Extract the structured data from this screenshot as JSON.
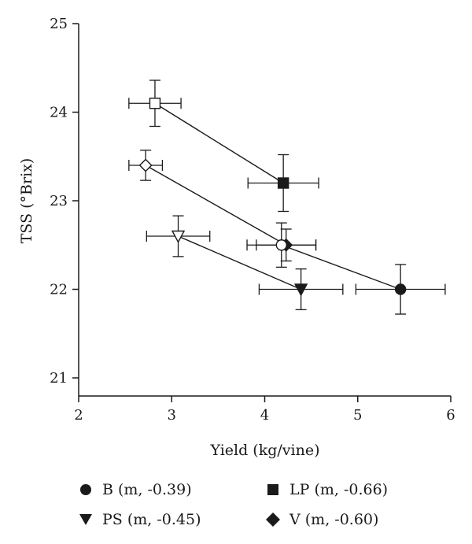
{
  "chart_data": {
    "type": "scatter",
    "title": "",
    "xlabel": "Yield (kg/vine)",
    "ylabel": "TSS (°Brix)",
    "xlim": [
      2,
      6
    ],
    "ylim": [
      21,
      25
    ],
    "xticks": [
      "2",
      "3",
      "4",
      "5",
      "6"
    ],
    "yticks": [
      "21",
      "22",
      "23",
      "24",
      "25"
    ],
    "grid": false,
    "legend_position": "bottom",
    "connections": [
      {
        "from": "LP-open",
        "to": "LP-filled"
      },
      {
        "from": "V-open",
        "to": "V-filled"
      },
      {
        "from": "PS-open",
        "to": "PS-filled"
      },
      {
        "from": "B-open",
        "to": "B-filled"
      }
    ],
    "points": [
      {
        "id": "LP-open",
        "series": "LP",
        "x": 2.82,
        "y": 24.1,
        "xerr": 0.28,
        "yerr": 0.26,
        "marker": "square",
        "filled": false
      },
      {
        "id": "LP-filled",
        "series": "LP",
        "x": 4.2,
        "y": 23.2,
        "xerr": 0.38,
        "yerr": 0.32,
        "marker": "square",
        "filled": true
      },
      {
        "id": "V-open",
        "series": "V",
        "x": 2.72,
        "y": 23.4,
        "xerr": 0.18,
        "yerr": 0.17,
        "marker": "diamond",
        "filled": false
      },
      {
        "id": "V-filled",
        "series": "V",
        "x": 4.23,
        "y": 22.5,
        "xerr": 0.32,
        "yerr": 0.18,
        "marker": "diamond",
        "filled": true
      },
      {
        "id": "PS-open",
        "series": "PS",
        "x": 3.07,
        "y": 22.6,
        "xerr": 0.34,
        "yerr": 0.23,
        "marker": "triangle-down",
        "filled": false
      },
      {
        "id": "PS-filled",
        "series": "PS",
        "x": 4.39,
        "y": 22.0,
        "xerr": 0.45,
        "yerr": 0.23,
        "marker": "triangle-down",
        "filled": true
      },
      {
        "id": "B-open",
        "series": "B",
        "x": 4.18,
        "y": 22.5,
        "xerr": 0.37,
        "yerr": 0.25,
        "marker": "circle",
        "filled": false
      },
      {
        "id": "B-filled",
        "series": "B",
        "x": 5.46,
        "y": 22.0,
        "xerr": 0.48,
        "yerr": 0.28,
        "marker": "circle",
        "filled": true
      }
    ],
    "legend": [
      {
        "marker": "circle",
        "label": "B (m, -0.39)"
      },
      {
        "marker": "square",
        "label": "LP (m, -0.66)"
      },
      {
        "marker": "triangle-down",
        "label": "PS (m, -0.45)"
      },
      {
        "marker": "diamond",
        "label": "V (m, -0.60)"
      }
    ],
    "colors": {
      "ink": "#1a1a1a",
      "background": "#ffffff"
    }
  }
}
